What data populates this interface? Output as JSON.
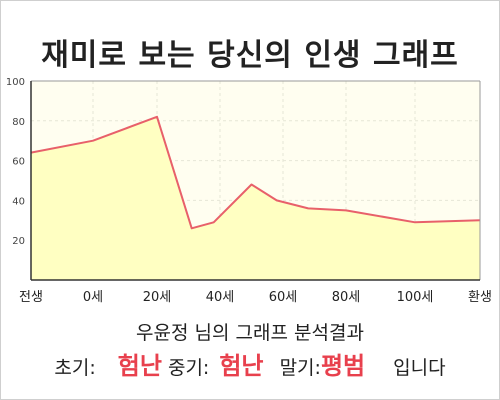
{
  "title": "재미로 보는 당신의 인생 그래프",
  "chart_data": {
    "type": "area",
    "x_ticks": [
      "전생",
      "0세",
      "20세",
      "40세",
      "60세",
      "80세",
      "100세",
      "환생"
    ],
    "y_ticks": [
      20,
      40,
      60,
      80,
      100
    ],
    "ylim": [
      0,
      100
    ],
    "grid": true,
    "points": [
      {
        "x": "전생",
        "y": 64
      },
      {
        "x": "0세",
        "y": 70
      },
      {
        "x": "20세",
        "y": 82
      },
      {
        "x": "31세",
        "y": 26
      },
      {
        "x": "38세",
        "y": 29
      },
      {
        "x": "50세",
        "y": 48
      },
      {
        "x": "58세",
        "y": 40
      },
      {
        "x": "68세",
        "y": 36
      },
      {
        "x": "80세",
        "y": 35
      },
      {
        "x": "100세",
        "y": 29
      },
      {
        "x": "환생",
        "y": 30
      }
    ],
    "line_color": "#e8606a",
    "fill_color": "#ffffc2"
  },
  "summary": {
    "name": "우윤정",
    "suffix": "님의 그래프 분석결과"
  },
  "results": {
    "early_label": "초기:",
    "early_value": "험난",
    "middle_label": "중기:",
    "middle_value": "험난",
    "late_label": "말기:",
    "late_value": "평범",
    "ending": "입니다"
  }
}
